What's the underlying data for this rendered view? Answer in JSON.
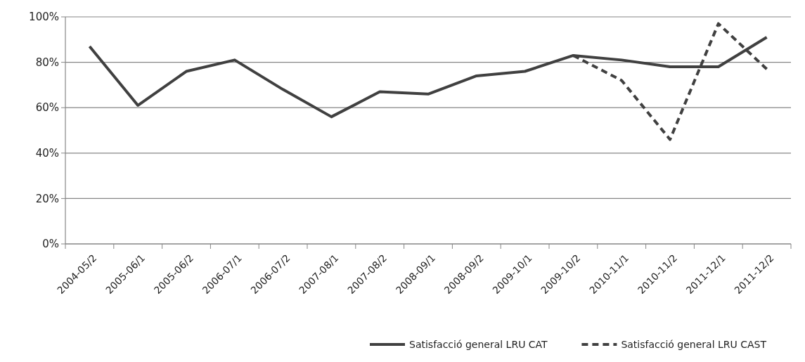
{
  "chart_data": {
    "type": "line",
    "categories": [
      "2004-05/2",
      "2005-06/1",
      "2005-06/2",
      "2006-07/1",
      "2006-07/2",
      "2007-08/1",
      "2007-08/2",
      "2008-09/1",
      "2008-09/2",
      "2009-10/1",
      "2009-10/2",
      "2010-11/1",
      "2010-11/2",
      "2011-12/1",
      "2011-12/2"
    ],
    "series": [
      {
        "name": "Satisfacció general LRU CAT",
        "color": "#404040",
        "line_style": "solid",
        "values": [
          87,
          61,
          76,
          81,
          68,
          56,
          67,
          66,
          74,
          76,
          83,
          81,
          78,
          78,
          91
        ]
      },
      {
        "name": "Satisfacció general LRU CAST",
        "color": "#404040",
        "line_style": "dashed",
        "values": [
          null,
          null,
          null,
          null,
          null,
          null,
          null,
          null,
          null,
          null,
          83,
          72,
          46,
          97,
          77
        ]
      }
    ],
    "ylim": [
      0,
      100
    ],
    "yticks": [
      {
        "value": 0,
        "label": "0%"
      },
      {
        "value": 20,
        "label": "20%"
      },
      {
        "value": 40,
        "label": "40%"
      },
      {
        "value": 60,
        "label": "60%"
      },
      {
        "value": 80,
        "label": "80%"
      },
      {
        "value": 100,
        "label": "100%"
      }
    ],
    "grid": "y",
    "legend": "bottom right",
    "marker": "none"
  }
}
